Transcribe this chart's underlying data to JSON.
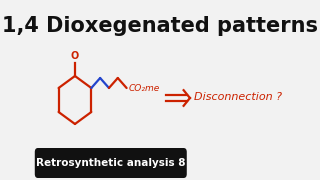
{
  "title": "1,4 Dioxegenated patterns",
  "title_color": "#111111",
  "title_fontsize": 15,
  "bg_color": "#f2f2f2",
  "mol_color": "#cc2200",
  "blue_color": "#2244cc",
  "disconnection_text": "Disconnection ?",
  "disconnection_color": "#cc2200",
  "co2me_color": "#cc2200",
  "footer_text": "Retrosynthetic analysis 8",
  "footer_bg": "#111111",
  "footer_text_color": "#ffffff",
  "footer_fontsize": 7.5
}
